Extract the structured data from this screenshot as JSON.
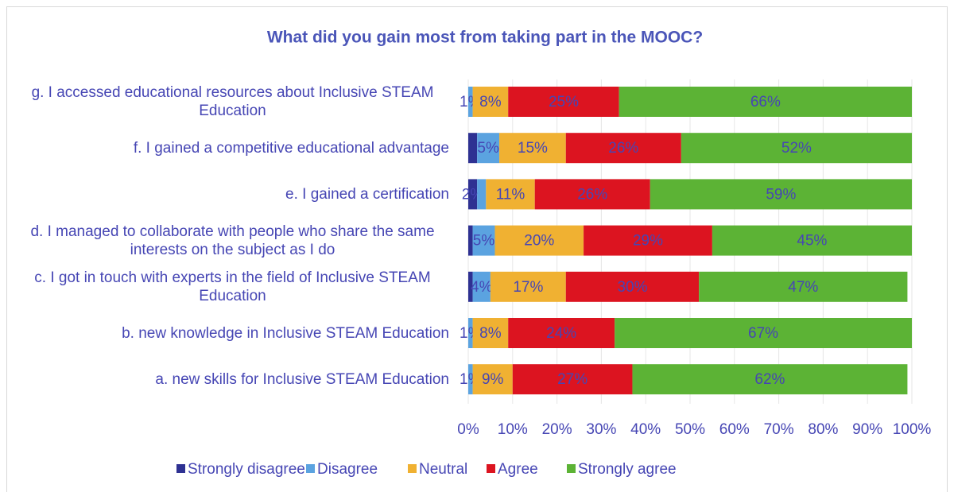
{
  "chart_data": {
    "type": "stacked_barh",
    "title": "What did you gain most from taking part in the MOOC?",
    "categories": [
      "a. new skills for Inclusive STEAM Education",
      "b. new knowledge in Inclusive STEAM Education",
      "c. I got in touch with experts in the field of Inclusive STEAM Education",
      "d. I managed to collaborate with people who share the same interests on the subject as I do",
      "e. I gained a certification",
      "f. I gained a competitive educational advantage",
      "g. I accessed educational resources about Inclusive STEAM Education"
    ],
    "series": [
      {
        "name": "Strongly disagree",
        "color": "#2e3192",
        "values": [
          0,
          0,
          1,
          1,
          2,
          2,
          0
        ],
        "value_labels": [
          null,
          null,
          null,
          null,
          "2%",
          null,
          null
        ]
      },
      {
        "name": "Disagree",
        "color": "#5ba3e0",
        "values": [
          1,
          1,
          4,
          5,
          2,
          5,
          1
        ],
        "value_labels": [
          "1%",
          "1%",
          "4%",
          "5%",
          null,
          "5%",
          "1%"
        ]
      },
      {
        "name": "Neutral",
        "color": "#f0b132",
        "values": [
          9,
          8,
          17,
          20,
          11,
          15,
          8
        ],
        "value_labels": [
          "9%",
          "8%",
          "17%",
          "20%",
          "11%",
          "15%",
          "8%"
        ]
      },
      {
        "name": "Agree",
        "color": "#dc1420",
        "values": [
          27,
          24,
          30,
          29,
          26,
          26,
          25
        ],
        "value_labels": [
          "27%",
          "24%",
          "30%",
          "29%",
          "26%",
          "26%",
          "25%"
        ]
      },
      {
        "name": "Strongly agree",
        "color": "#5cb335",
        "values": [
          62,
          67,
          47,
          45,
          59,
          52,
          66
        ],
        "value_labels": [
          "62%",
          "67%",
          "47%",
          "45%",
          "59%",
          "52%",
          "66%"
        ]
      }
    ],
    "xlim": [
      0,
      100
    ],
    "xticks": [
      {
        "value": 0,
        "label": "0%"
      },
      {
        "value": 10,
        "label": "10%"
      },
      {
        "value": 20,
        "label": "20%"
      },
      {
        "value": 30,
        "label": "30%"
      },
      {
        "value": 40,
        "label": "40%"
      },
      {
        "value": 50,
        "label": "50%"
      },
      {
        "value": 60,
        "label": "60%"
      },
      {
        "value": 70,
        "label": "70%"
      },
      {
        "value": 80,
        "label": "80%"
      },
      {
        "value": 90,
        "label": "90%"
      },
      {
        "value": 100,
        "label": "100%"
      }
    ],
    "grid": true,
    "legend": "bottom"
  }
}
